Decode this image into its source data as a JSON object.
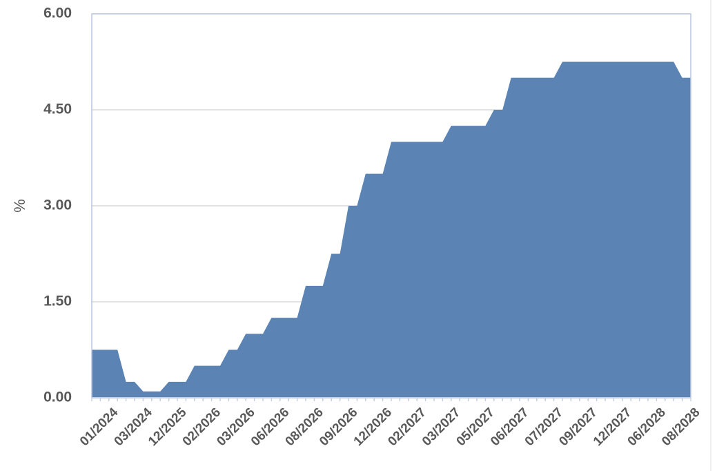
{
  "chart_data": {
    "type": "area",
    "y_label": "%",
    "categories": [
      null,
      null,
      "01/2024",
      null,
      null,
      null,
      "03/2024",
      null,
      null,
      null,
      "12/2025",
      null,
      null,
      null,
      "02/2026",
      null,
      null,
      null,
      "03/2026",
      null,
      null,
      null,
      "06/2026",
      null,
      null,
      null,
      "08/2026",
      null,
      null,
      null,
      "09/2026",
      null,
      null,
      null,
      "12/2026",
      null,
      null,
      null,
      "02/2027",
      null,
      null,
      null,
      "03/2027",
      null,
      null,
      null,
      "05/2027",
      null,
      null,
      null,
      "06/2027",
      null,
      null,
      null,
      "07/2027",
      null,
      null,
      null,
      "09/2027",
      null,
      null,
      null,
      "12/2027",
      null,
      null,
      null,
      "06/2028",
      null,
      null,
      null,
      "08/2028"
    ],
    "values": [
      0.75,
      0.75,
      0.75,
      0.75,
      0.25,
      0.25,
      0.1,
      0.1,
      0.1,
      0.25,
      0.25,
      0.25,
      0.5,
      0.5,
      0.5,
      0.5,
      0.75,
      0.75,
      1.0,
      1.0,
      1.0,
      1.25,
      1.25,
      1.25,
      1.25,
      1.75,
      1.75,
      1.75,
      2.25,
      2.25,
      3.0,
      3.0,
      3.5,
      3.5,
      3.5,
      4.0,
      4.0,
      4.0,
      4.0,
      4.0,
      4.0,
      4.0,
      4.25,
      4.25,
      4.25,
      4.25,
      4.25,
      4.5,
      4.5,
      5.0,
      5.0,
      5.0,
      5.0,
      5.0,
      5.0,
      5.25,
      5.25,
      5.25,
      5.25,
      5.25,
      5.25,
      5.25,
      5.25,
      5.25,
      5.25,
      5.25,
      5.25,
      5.25,
      5.25,
      5.0,
      5.0
    ],
    "color": "#5b83b4",
    "ylim": [
      0,
      6
    ],
    "yticks": [
      {
        "value": 0,
        "label": "0.00"
      },
      {
        "value": 1.5,
        "label": "1.50"
      },
      {
        "value": 3,
        "label": "3.00"
      },
      {
        "value": 4.5,
        "label": "4.50"
      },
      {
        "value": 6,
        "label": "6.00"
      }
    ],
    "grid": true
  }
}
